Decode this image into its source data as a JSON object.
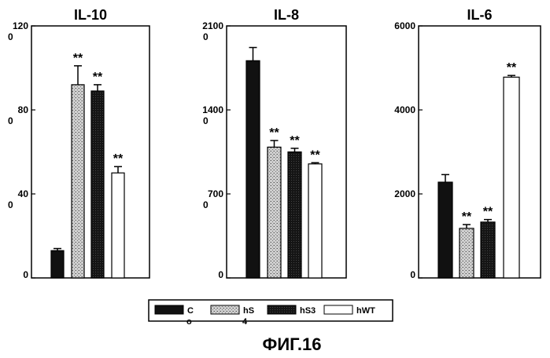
{
  "chart_data": [
    {
      "type": "bar",
      "title": "IL-10",
      "ylim": [
        0,
        120
      ],
      "yticks": [
        0,
        40,
        80,
        120
      ],
      "ytick_labels": [
        [
          "0"
        ],
        [
          "40",
          "0"
        ],
        [
          "80",
          "0"
        ],
        [
          "120",
          "0"
        ]
      ],
      "categories": [
        "C",
        "hS",
        "hS3",
        "hWT"
      ],
      "values": [
        13,
        92,
        89,
        50
      ],
      "errors": [
        1,
        9,
        3,
        3
      ],
      "significance": [
        "",
        "**",
        "**",
        "**"
      ]
    },
    {
      "type": "bar",
      "title": "IL-8",
      "ylim": [
        0,
        2100
      ],
      "yticks": [
        0,
        700,
        1400,
        2100
      ],
      "ytick_labels": [
        [
          "0"
        ],
        [
          "700",
          "0"
        ],
        [
          "1400",
          "0"
        ],
        [
          "2100",
          "0"
        ]
      ],
      "categories": [
        "C",
        "hS",
        "hS3",
        "hWT"
      ],
      "values": [
        1810,
        1090,
        1050,
        950
      ],
      "errors": [
        110,
        55,
        30,
        10
      ],
      "significance": [
        "",
        "**",
        "**",
        "**"
      ]
    },
    {
      "type": "bar",
      "title": "IL-6",
      "ylim": [
        0,
        6000
      ],
      "yticks": [
        0,
        2000,
        4000,
        6000
      ],
      "ytick_labels": [
        [
          "0"
        ],
        [
          "2000"
        ],
        [
          "4000"
        ],
        [
          "6000"
        ]
      ],
      "categories": [
        "C",
        "hS",
        "hS3",
        "hWT"
      ],
      "values": [
        2280,
        1180,
        1330,
        4780
      ],
      "errors": [
        180,
        90,
        60,
        40
      ],
      "significance": [
        "",
        "**",
        "**",
        "**"
      ]
    }
  ],
  "legend": {
    "position": "bottom-center",
    "items": [
      {
        "label": "C",
        "sublabel": "o",
        "fill": "#111111"
      },
      {
        "label": "hS",
        "sublabel": "4",
        "fill": "#bdbdbd"
      },
      {
        "label": "hS3",
        "sublabel": "",
        "fill": "#111111"
      },
      {
        "label": "hWT",
        "sublabel": "",
        "fill": "#ffffff"
      }
    ]
  },
  "figure_caption": "ФИГ.16",
  "colors": {
    "C": "#111111",
    "hS": "#bdbdbd",
    "hS3": "#111111",
    "hWT": "#ffffff",
    "axis": "#000000"
  }
}
